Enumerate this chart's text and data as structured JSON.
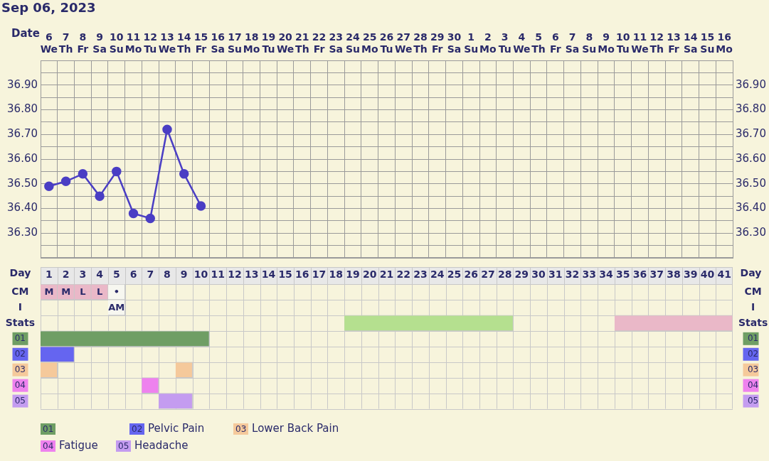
{
  "chart_data": [
    {
      "type": "line",
      "title": "Sep 06, 2023",
      "xlabel": "Date",
      "categories": [
        "6 We",
        "7 Th",
        "8 Fr",
        "9 Sa",
        "10 Su",
        "11 Mo",
        "12 Tu",
        "13 We",
        "14 Th",
        "15 Fr",
        "16 Sa",
        "17 Su",
        "18 Mo",
        "19 Tu",
        "20 We",
        "21 Th",
        "22 Fr",
        "23 Sa",
        "24 Su",
        "25 Mo",
        "26 Tu",
        "27 We",
        "28 Th",
        "29 Fr",
        "30 Sa",
        "1 Su",
        "2 Mo",
        "3 Tu",
        "4 We",
        "5 Th",
        "6 Fr",
        "7 Sa",
        "8 Su",
        "9 Mo",
        "10 Tu",
        "11 We",
        "12 Th",
        "13 Fr",
        "14 Sa",
        "15 Su",
        "16 Mo"
      ],
      "series": [
        {
          "color": "#4a3ec4",
          "values": [
            36.49,
            36.51,
            36.54,
            36.45,
            36.55,
            36.38,
            36.36,
            36.72,
            36.54,
            36.41,
            null,
            null,
            null,
            null,
            null,
            null,
            null,
            null,
            null,
            null,
            null,
            null,
            null,
            null,
            null,
            null,
            null,
            null,
            null,
            null,
            null,
            null,
            null,
            null,
            null,
            null,
            null,
            null,
            null,
            null,
            null
          ]
        }
      ],
      "ylim": [
        36.2,
        37.0
      ],
      "yticks": [
        {
          "value": 36.2,
          "label": null
        },
        {
          "value": 36.25,
          "label": null
        },
        {
          "value": 36.3,
          "label": "36.30"
        },
        {
          "value": 36.35,
          "label": null
        },
        {
          "value": 36.4,
          "label": "36.40"
        },
        {
          "value": 36.45,
          "label": null
        },
        {
          "value": 36.5,
          "label": "36.50"
        },
        {
          "value": 36.55,
          "label": null
        },
        {
          "value": 36.6,
          "label": "36.60"
        },
        {
          "value": 36.65,
          "label": null
        },
        {
          "value": 36.7,
          "label": "36.70"
        },
        {
          "value": 36.75,
          "label": null
        },
        {
          "value": 36.8,
          "label": "36.80"
        },
        {
          "value": 36.85,
          "label": null
        },
        {
          "value": 36.9,
          "label": "36.90"
        },
        {
          "value": 36.95,
          "label": null
        }
      ],
      "y2lim": [
        36.2,
        37.0
      ],
      "y2ticks": [
        {
          "value": 36.3,
          "label": "36.30"
        },
        {
          "value": 36.4,
          "label": "36.40"
        },
        {
          "value": 36.5,
          "label": "36.50"
        },
        {
          "value": 36.6,
          "label": "36.60"
        },
        {
          "value": 36.7,
          "label": "36.70"
        },
        {
          "value": 36.8,
          "label": "36.80"
        },
        {
          "value": 36.9,
          "label": "36.90"
        }
      ],
      "grid": true,
      "legend": false,
      "marker": "circle"
    },
    {
      "type": "bar",
      "orientation": "horizontal",
      "xlabel": "Day",
      "categories": [
        "CM",
        "I",
        "Stats",
        "01",
        "02",
        "03",
        "04",
        "05"
      ],
      "y2_categories": [
        "CM",
        "I",
        "Stats",
        "01",
        "02",
        "03",
        "04",
        "05"
      ],
      "xlim": [
        0.5,
        41.5
      ],
      "xticks": [
        1,
        2,
        3,
        4,
        5,
        6,
        7,
        8,
        9,
        10,
        11,
        12,
        13,
        14,
        15,
        16,
        17,
        18,
        19,
        20,
        21,
        22,
        23,
        24,
        25,
        26,
        27,
        28,
        29,
        30,
        31,
        32,
        33,
        34,
        35,
        36,
        37,
        38,
        39,
        40,
        41
      ],
      "series": [
        {
          "color": "#eab8c8",
          "values": [
            1,
            null,
            null,
            null,
            null,
            null,
            null,
            null
          ],
          "base": [
            0.5,
            null,
            null,
            null,
            null,
            null,
            null,
            null
          ],
          "value_labels": [
            "M",
            null,
            null,
            null,
            null,
            null,
            null,
            null
          ]
        },
        {
          "color": "#eab8c8",
          "values": [
            1,
            null,
            null,
            null,
            null,
            null,
            null,
            null
          ],
          "base": [
            1.5,
            null,
            null,
            null,
            null,
            null,
            null,
            null
          ],
          "value_labels": [
            "M",
            null,
            null,
            null,
            null,
            null,
            null,
            null
          ]
        },
        {
          "color": "#eab8c8",
          "values": [
            1,
            null,
            null,
            null,
            null,
            null,
            null,
            null
          ],
          "base": [
            2.5,
            null,
            null,
            null,
            null,
            null,
            null,
            null
          ],
          "value_labels": [
            "L",
            null,
            null,
            null,
            null,
            null,
            null,
            null
          ]
        },
        {
          "color": "#eab8c8",
          "values": [
            1,
            null,
            null,
            null,
            null,
            null,
            null,
            null
          ],
          "base": [
            3.5,
            null,
            null,
            null,
            null,
            null,
            null,
            null
          ],
          "value_labels": [
            "L",
            null,
            null,
            null,
            null,
            null,
            null,
            null
          ]
        },
        {
          "color": "#f7f7f0",
          "values": [
            1,
            1,
            null,
            null,
            null,
            null,
            null,
            null
          ],
          "base": [
            4.5,
            4.5,
            null,
            null,
            null,
            null,
            null,
            null
          ],
          "value_labels": [
            "•",
            "AM",
            null,
            null,
            null,
            null,
            null,
            null
          ]
        },
        {
          "color": "#b5e08f",
          "values": [
            null,
            null,
            10,
            null,
            null,
            null,
            null,
            null
          ],
          "base": [
            null,
            null,
            18.5,
            null,
            null,
            null,
            null,
            null
          ]
        },
        {
          "color": "#eab8c8",
          "values": [
            null,
            null,
            7,
            null,
            null,
            null,
            null,
            null
          ],
          "base": [
            null,
            null,
            34.5,
            null,
            null,
            null,
            null,
            null
          ]
        },
        {
          "color": "#6f9e64",
          "values": [
            null,
            null,
            null,
            10,
            null,
            null,
            null,
            null
          ],
          "base": [
            null,
            null,
            null,
            0.5,
            null,
            null,
            null,
            null
          ]
        },
        {
          "color": "#6565f0",
          "values": [
            null,
            null,
            null,
            null,
            2,
            null,
            null,
            null
          ],
          "base": [
            null,
            null,
            null,
            null,
            0.5,
            null,
            null,
            null
          ]
        },
        {
          "color": "#f5c99b",
          "values": [
            null,
            null,
            null,
            null,
            null,
            1,
            null,
            null
          ],
          "base": [
            null,
            null,
            null,
            null,
            null,
            0.5,
            null,
            null
          ]
        },
        {
          "color": "#f5c99b",
          "values": [
            null,
            null,
            null,
            null,
            null,
            1,
            null,
            null
          ],
          "base": [
            null,
            null,
            null,
            null,
            null,
            8.5,
            null,
            null
          ]
        },
        {
          "color": "#ee82ee",
          "values": [
            null,
            null,
            null,
            null,
            null,
            null,
            1,
            null
          ],
          "base": [
            null,
            null,
            null,
            null,
            null,
            null,
            6.5,
            null
          ]
        },
        {
          "color": "#c49cf0",
          "values": [
            null,
            null,
            null,
            null,
            null,
            null,
            null,
            2
          ],
          "base": [
            null,
            null,
            null,
            null,
            null,
            null,
            null,
            7.5
          ]
        }
      ],
      "annotations": [
        "01",
        "02 Pelvic Pain",
        "03 Lower Back Pain",
        "04 Fatigue",
        "05 Headache"
      ],
      "legend": false
    }
  ]
}
